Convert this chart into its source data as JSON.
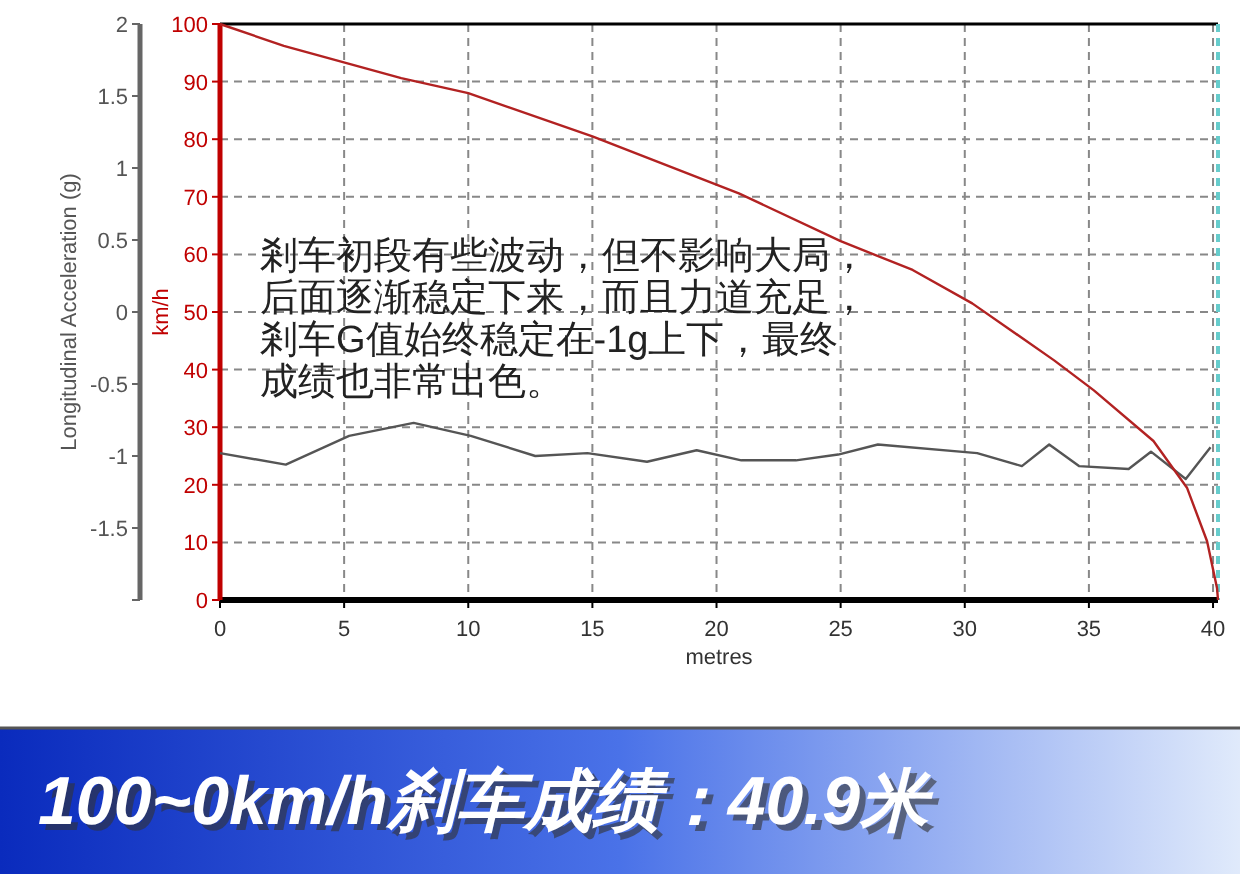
{
  "chart_data": {
    "type": "line",
    "title": "100~0km/h刹车成绩：40.9米",
    "annotations": [
      "剎车初段有些波动，但不影响大局，",
      "后面逐渐稳定下来，而且力道充足，",
      "剎车G值始终稳定在-1g上下，最终",
      "成绩也非常出色。"
    ],
    "xlabel": "metres",
    "ylabel": "Longitudinal Acceleration (g)",
    "y2label": "km/h",
    "xlim": [
      0,
      40.2
    ],
    "xticks": [
      0,
      5,
      10,
      15,
      20,
      25,
      30,
      35,
      40
    ],
    "ylim": [
      -2,
      2
    ],
    "yticks": [
      {
        "value": -2,
        "label": null
      },
      -1.5,
      -1,
      -0.5,
      0,
      0.5,
      1,
      1.5,
      2
    ],
    "y2lim": [
      0,
      100
    ],
    "y2ticks": [
      0,
      10,
      20,
      30,
      40,
      50,
      60,
      70,
      80,
      90,
      100
    ],
    "grid": true,
    "ref_lines": [
      {
        "axis": "x",
        "value": 40.2,
        "color": "#66cccc",
        "line_style": "dashed"
      }
    ],
    "series": [
      {
        "color": "#555555",
        "x": [
          0,
          2.65,
          5.2,
          7.8,
          10.1,
          12.7,
          14.8,
          17.2,
          19.2,
          21.0,
          23.2,
          24.9,
          26.5,
          30.5,
          32.3,
          33.4,
          34.6,
          36.6,
          37.5,
          38.9,
          39.9
        ],
        "values": [
          -0.98,
          -1.06,
          -0.86,
          -0.77,
          -0.86,
          -1.0,
          -0.98,
          -1.04,
          -0.96,
          -1.03,
          -1.03,
          -0.99,
          -0.92,
          -0.98,
          -1.07,
          -0.92,
          -1.07,
          -1.09,
          -0.97,
          -1.16,
          -0.94
        ]
      },
      {
        "color": "#b22222",
        "axis": "y2",
        "x": [
          0,
          2.57,
          7.3,
          10,
          15,
          20.9,
          25,
          27.9,
          30.3,
          33.6,
          35.2,
          37.6,
          38.95,
          39.76,
          40.16,
          40.2
        ],
        "values": [
          100,
          96.2,
          90.6,
          88.0,
          80.5,
          70.6,
          62.3,
          57.3,
          51.5,
          41.6,
          36.4,
          27.6,
          19.5,
          10.2,
          2.1,
          0
        ]
      }
    ]
  }
}
